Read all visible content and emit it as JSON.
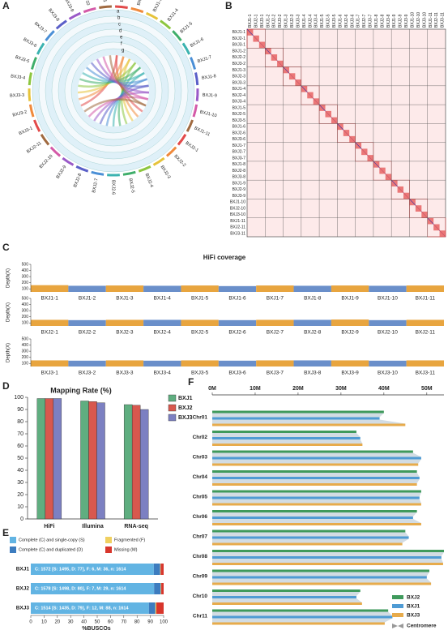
{
  "panels": [
    "A",
    "B",
    "C",
    "D",
    "E",
    "F"
  ],
  "circos": {
    "tracks": [
      "a",
      "b",
      "c",
      "d",
      "e",
      "f",
      "g"
    ],
    "chromosomes": [
      "BXJ1-1",
      "BXJ1-2",
      "BXJ1-3",
      "BXJ1-4",
      "BXJ1-5",
      "BXJ1-6",
      "BXJ1-7",
      "BXJ1-8",
      "BXJ1-9",
      "BXJ1-10",
      "BXJ1-11",
      "BXJ2-1",
      "BXJ2-2",
      "BXJ2-3",
      "BXJ2-4",
      "BXJ2-5",
      "BXJ2-6",
      "BXJ2-7",
      "BXJ2-8",
      "BXJ2-9",
      "BXJ2-10",
      "BXJ2-11",
      "BXJ3-1",
      "BXJ3-2",
      "BXJ3-3",
      "BXJ3-4",
      "BXJ3-5",
      "BXJ3-6",
      "BXJ3-7",
      "BXJ3-8",
      "BXJ3-9",
      "BXJ3-10",
      "BXJ3-11"
    ]
  },
  "dotplot": {
    "labels": [
      "BXJ1-1",
      "BXJ2-1",
      "BXJ3-1",
      "BXJ1-2",
      "BXJ2-2",
      "BXJ3-2",
      "BXJ1-3",
      "BXJ2-3",
      "BXJ3-3",
      "BXJ1-4",
      "BXJ2-4",
      "BXJ3-4",
      "BXJ1-5",
      "BXJ2-5",
      "BXJ3-5",
      "BXJ1-6",
      "BXJ2-6",
      "BXJ3-6",
      "BXJ1-7",
      "BXJ2-7",
      "BXJ3-7",
      "BXJ1-8",
      "BXJ2-8",
      "BXJ3-8",
      "BXJ1-9",
      "BXJ2-9",
      "BXJ3-9",
      "BXJ1-10",
      "BXJ2-10",
      "BXJ3-10",
      "BXJ1-11",
      "BXJ2-11",
      "BXJ3-11"
    ]
  },
  "chart_data": [
    {
      "type": "coverage",
      "title": "HiFi coverage",
      "y_label": "Depth(X)",
      "ylim": [
        50,
        500
      ],
      "yticks": [
        100,
        200,
        300,
        400,
        500
      ],
      "colors": [
        "#e8a53f",
        "#6a8fca"
      ],
      "rows": [
        {
          "categories": [
            "BXJ1-1",
            "BXJ1-2",
            "BXJ1-3",
            "BXJ1-4",
            "BXJ1-5",
            "BXJ1-6",
            "BXJ1-7",
            "BXJ1-8",
            "BXJ1-9",
            "BXJ1-10",
            "BXJ1-11"
          ],
          "values": [
            160,
            150,
            155,
            150,
            155,
            145,
            155,
            150,
            155,
            150,
            155
          ]
        },
        {
          "categories": [
            "BXJ2-1",
            "BXJ2-2",
            "BXJ2-3",
            "BXJ2-4",
            "BXJ2-5",
            "BXJ2-6",
            "BXJ2-7",
            "BXJ2-8",
            "BXJ2-9",
            "BXJ2-10",
            "BXJ2-11"
          ],
          "values": [
            150,
            145,
            150,
            150,
            150,
            145,
            150,
            150,
            155,
            145,
            150
          ]
        },
        {
          "categories": [
            "BXJ3-1",
            "BXJ3-2",
            "BXJ3-3",
            "BXJ3-4",
            "BXJ3-5",
            "BXJ3-6",
            "BXJ3-7",
            "BXJ3-8",
            "BXJ3-9",
            "BXJ3-10",
            "BXJ3-11"
          ],
          "values": [
            150,
            145,
            150,
            145,
            150,
            145,
            150,
            150,
            150,
            145,
            150
          ]
        }
      ]
    },
    {
      "type": "bar",
      "title": "Mapping Rate (%)",
      "categories": [
        "HiFi",
        "Illumina",
        "RNA-seq"
      ],
      "ylim": [
        0,
        100
      ],
      "yticks": [
        0,
        10,
        20,
        30,
        40,
        50,
        60,
        70,
        80,
        90,
        100
      ],
      "series": [
        {
          "name": "BXJ1",
          "color": "#5fae80",
          "values": [
            99,
            97,
            94
          ]
        },
        {
          "name": "BXJ2",
          "color": "#d8584e",
          "values": [
            99,
            96.5,
            93.5
          ]
        },
        {
          "name": "BXJ3",
          "color": "#7c80c2",
          "values": [
            99,
            95.5,
            90
          ]
        }
      ]
    },
    {
      "type": "stacked-hbar",
      "x_label": "%BUSCOs",
      "categories": [
        "BXJ1",
        "BXJ2",
        "BXJ3"
      ],
      "xlim": [
        0,
        100
      ],
      "xticks": [
        0,
        10,
        20,
        30,
        40,
        50,
        60,
        70,
        80,
        90,
        100
      ],
      "series": [
        {
          "name": "Complete (C) and single-copy (S)",
          "color": "#62b4e3",
          "values": [
            92.6,
            92.8,
            88.9
          ]
        },
        {
          "name": "Complete (C) and duplicated (D)",
          "color": "#3c7cbf",
          "values": [
            4.8,
            5.0,
            4.9
          ]
        },
        {
          "name": "Fragmented (F)",
          "color": "#f0d060",
          "values": [
            0.4,
            0.4,
            0.7
          ]
        },
        {
          "name": "Missing (M)",
          "color": "#d8362c",
          "values": [
            2.2,
            1.8,
            5.5
          ]
        }
      ],
      "annotations": [
        "C: 1572 [S: 1495, D: 77], F: 6, M: 36, n: 1614",
        "C: 1578 [S: 1498, D: 80], F: 7, M: 29, n: 1614",
        "C: 1514 [S: 1435, D: 79], F: 12, M: 88, n: 1614"
      ]
    },
    {
      "type": "synteny",
      "categories": [
        "Chr01",
        "Chr02",
        "Chr03",
        "Chr04",
        "Chr05",
        "Chr06",
        "Chr07",
        "Chr08",
        "Chr09",
        "Chr10",
        "Chr11"
      ],
      "xlim": [
        0,
        54
      ],
      "xticks": [
        {
          "value": 0,
          "label": "0M"
        },
        {
          "value": 10,
          "label": "10M"
        },
        {
          "value": 20,
          "label": "20M"
        },
        {
          "value": 30,
          "label": "30M"
        },
        {
          "value": 40,
          "label": "40M"
        },
        {
          "value": 50,
          "label": "50M"
        }
      ],
      "series": [
        {
          "name": "BXJ2",
          "color": "#3f9a5c",
          "values": [
            40,
            33.6,
            46.8,
            47.7,
            48.7,
            47.7,
            45,
            54,
            50.6,
            34.5,
            41
          ]
        },
        {
          "name": "BXJ1",
          "color": "#4f9bd4",
          "values": [
            39,
            34.5,
            48.7,
            48.3,
            48.3,
            46.8,
            45.8,
            53.4,
            50,
            33.6,
            42
          ]
        },
        {
          "name": "BXJ3",
          "color": "#e7ab4c",
          "values": [
            45,
            35,
            48,
            47.7,
            48.7,
            48.7,
            44.3,
            53.8,
            51,
            34.9,
            40.2
          ]
        }
      ],
      "legend_extra": "Centromere"
    }
  ]
}
